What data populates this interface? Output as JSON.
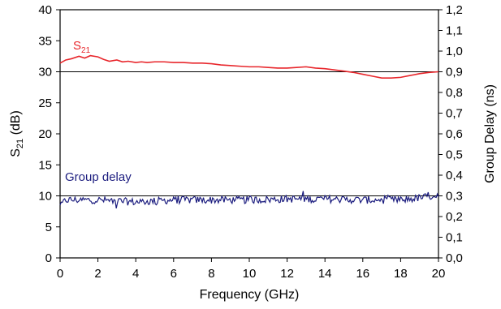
{
  "chart_data": {
    "type": "line",
    "title": "",
    "xlabel": "Frequency (GHz)",
    "ylabel_left_main": "S",
    "ylabel_left_sub": "21",
    "ylabel_left_unit": " (dB)",
    "ylabel_right": "Group Delay (ns)",
    "xlim": [
      0,
      20
    ],
    "ylim_left": [
      0,
      40
    ],
    "ylim_right": [
      0.0,
      1.2
    ],
    "x_ticks": [
      "0",
      "2",
      "4",
      "6",
      "8",
      "10",
      "12",
      "14",
      "16",
      "18",
      "20"
    ],
    "y_left_ticks": [
      "0",
      "5",
      "10",
      "15",
      "20",
      "25",
      "30",
      "35",
      "40"
    ],
    "y_right_ticks": [
      "0,0",
      "0,1",
      "0,2",
      "0,3",
      "0,4",
      "0,5",
      "0,6",
      "0,7",
      "0,8",
      "0,9",
      "1,0",
      "1,1",
      "1,2"
    ],
    "grid_horizontal_at": [
      10,
      30
    ],
    "series": [
      {
        "name_main": "S",
        "name_sub": "21",
        "axis": "left",
        "color": "#e8262b",
        "x": [
          0,
          0.3,
          0.6,
          1.0,
          1.3,
          1.6,
          2.0,
          2.3,
          2.6,
          3.0,
          3.3,
          3.6,
          4.0,
          4.3,
          4.6,
          5.0,
          5.5,
          6.0,
          6.5,
          7.0,
          7.5,
          8.0,
          8.5,
          9.0,
          9.5,
          10.0,
          10.5,
          11.0,
          11.5,
          12.0,
          12.5,
          13.0,
          13.5,
          14.0,
          14.5,
          15.0,
          15.5,
          16.0,
          16.5,
          17.0,
          17.5,
          18.0,
          18.5,
          19.0,
          19.5,
          20.0
        ],
        "y": [
          31.4,
          31.9,
          32.1,
          32.5,
          32.2,
          32.6,
          32.4,
          32.0,
          31.7,
          31.9,
          31.6,
          31.7,
          31.5,
          31.6,
          31.5,
          31.6,
          31.6,
          31.5,
          31.5,
          31.4,
          31.4,
          31.3,
          31.1,
          31.0,
          30.9,
          30.8,
          30.8,
          30.7,
          30.6,
          30.6,
          30.7,
          30.8,
          30.6,
          30.5,
          30.3,
          30.1,
          29.9,
          29.6,
          29.3,
          29.0,
          29.0,
          29.1,
          29.4,
          29.7,
          29.9,
          30.0
        ]
      },
      {
        "name": "Group delay",
        "axis": "right",
        "color": "#1c1d7f",
        "x_start": 0,
        "x_end": 20,
        "baseline": [
          [
            0,
            0.25
          ],
          [
            0.3,
            0.28
          ],
          [
            1.0,
            0.28
          ],
          [
            2.0,
            0.28
          ],
          [
            4.0,
            0.27
          ],
          [
            6.0,
            0.28
          ],
          [
            8.0,
            0.28
          ],
          [
            10.0,
            0.28
          ],
          [
            12.0,
            0.285
          ],
          [
            14.0,
            0.285
          ],
          [
            16.0,
            0.28
          ],
          [
            18.0,
            0.28
          ],
          [
            19.0,
            0.29
          ],
          [
            20.0,
            0.305
          ]
        ],
        "noise_amplitude": 0.018,
        "points": 330
      }
    ]
  }
}
